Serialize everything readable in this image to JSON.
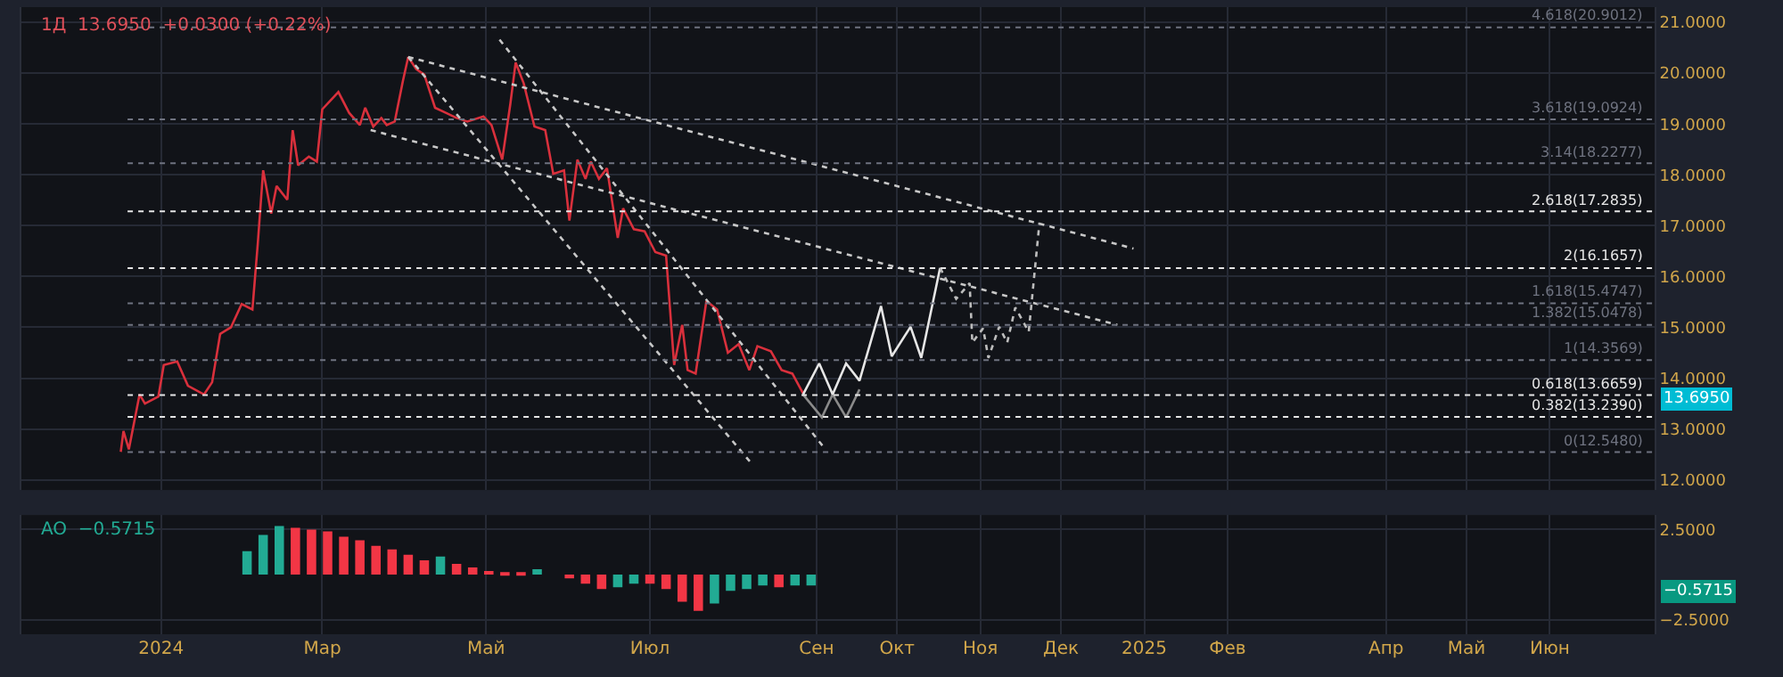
{
  "chart_data": [
    {
      "type": "line",
      "title": "1Д  13.6950  +0.0300 (+0.22%)",
      "xlim": [
        "2023-11-10",
        "2025-07-10"
      ],
      "ylim": [
        11.8,
        21.3
      ],
      "yticks": [
        {
          "value": 12,
          "label": "12.0000"
        },
        {
          "value": 13,
          "label": "13.0000"
        },
        {
          "value": 14,
          "label": "14.0000"
        },
        {
          "value": 15,
          "label": "15.0000"
        },
        {
          "value": 16,
          "label": "16.0000"
        },
        {
          "value": 17,
          "label": "17.0000"
        },
        {
          "value": 18,
          "label": "18.0000"
        },
        {
          "value": 19,
          "label": "19.0000"
        },
        {
          "value": 20,
          "label": "20.0000"
        },
        {
          "value": 21,
          "label": "21.0000"
        }
      ],
      "grid": true,
      "legend": false,
      "tick_labels": "y",
      "series": [
        {
          "color": "#d9303c",
          "line_style": "solid",
          "x": [
            "2023-12-17",
            "2023-12-18",
            "2023-12-20",
            "2023-12-24",
            "2023-12-26",
            "2023-12-31",
            "2024-01-02",
            "2024-01-07",
            "2024-01-11",
            "2024-01-17",
            "2024-01-20",
            "2024-01-23",
            "2024-01-27",
            "2024-01-31",
            "2024-02-04",
            "2024-02-06",
            "2024-02-08",
            "2024-02-11",
            "2024-02-13",
            "2024-02-17",
            "2024-02-19",
            "2024-02-21",
            "2024-02-25",
            "2024-02-28",
            "2024-03-01",
            "2024-03-07",
            "2024-03-11",
            "2024-03-15",
            "2024-03-17",
            "2024-03-20",
            "2024-03-23",
            "2024-03-25",
            "2024-03-28",
            "2024-03-31",
            "2024-04-02",
            "2024-04-05",
            "2024-04-08",
            "2024-04-12",
            "2024-04-16",
            "2024-04-20",
            "2024-04-24",
            "2024-04-30",
            "2024-05-03",
            "2024-05-07",
            "2024-05-10",
            "2024-05-12",
            "2024-05-15",
            "2024-05-19",
            "2024-05-23",
            "2024-05-26",
            "2024-05-30",
            "2024-06-01",
            "2024-06-04",
            "2024-06-07",
            "2024-06-09",
            "2024-06-12",
            "2024-06-15",
            "2024-06-19",
            "2024-06-21",
            "2024-06-25",
            "2024-06-29",
            "2024-07-03",
            "2024-07-07",
            "2024-07-10",
            "2024-07-13",
            "2024-07-15",
            "2024-07-18",
            "2024-07-22",
            "2024-07-26",
            "2024-07-30",
            "2024-08-03",
            "2024-08-07",
            "2024-08-10",
            "2024-08-15",
            "2024-08-19",
            "2024-08-23",
            "2024-08-27"
          ],
          "values": [
            12.55,
            12.96,
            12.6,
            13.68,
            13.5,
            13.64,
            14.26,
            14.33,
            13.85,
            13.68,
            13.92,
            14.87,
            15.0,
            15.46,
            15.35,
            16.65,
            18.09,
            17.24,
            17.78,
            17.51,
            18.88,
            18.19,
            18.36,
            18.26,
            19.29,
            19.63,
            19.22,
            18.98,
            19.32,
            18.95,
            19.12,
            18.98,
            19.05,
            19.84,
            20.32,
            20.08,
            19.97,
            19.32,
            19.22,
            19.12,
            19.05,
            19.15,
            18.98,
            18.3,
            19.39,
            20.21,
            19.8,
            18.95,
            18.88,
            18.02,
            18.09,
            17.1,
            18.3,
            17.92,
            18.26,
            17.92,
            18.13,
            16.76,
            17.34,
            16.93,
            16.89,
            16.48,
            16.41,
            14.26,
            15.05,
            14.16,
            14.09,
            15.52,
            15.35,
            14.5,
            14.67,
            14.16,
            14.63,
            14.53,
            14.16,
            14.09,
            13.7
          ]
        },
        {
          "color": "#c8c8c8",
          "line_style": "dotted",
          "x": [
            "2024-04-02",
            "2024-12-28"
          ],
          "values": [
            20.32,
            16.55
          ]
        },
        {
          "color": "#c8c8c8",
          "line_style": "dotted",
          "x": [
            "2024-03-19",
            "2024-12-22"
          ],
          "values": [
            18.88,
            15.05
          ]
        },
        {
          "color": "#c8c8c8",
          "line_style": "dotted",
          "x": [
            "2024-04-02",
            "2024-08-08"
          ],
          "values": [
            20.32,
            12.31
          ]
        },
        {
          "color": "#c8c8c8",
          "line_style": "dotted",
          "x": [
            "2024-05-06",
            "2024-09-04"
          ],
          "values": [
            20.66,
            12.62
          ]
        },
        {
          "color": "#8a8a8a",
          "line_style": "solid",
          "x": [
            "2024-08-27",
            "2024-09-03",
            "2024-09-07",
            "2024-09-12",
            "2024-09-17"
          ],
          "values": [
            13.68,
            13.23,
            13.68,
            13.23,
            13.78
          ]
        },
        {
          "color": "#e6e6e6",
          "line_style": "solid",
          "x": [
            "2024-08-27",
            "2024-09-02",
            "2024-09-07",
            "2024-09-12",
            "2024-09-17",
            "2024-09-25",
            "2024-09-29",
            "2024-10-06",
            "2024-10-10",
            "2024-10-17"
          ],
          "values": [
            13.68,
            14.29,
            13.68,
            14.29,
            13.95,
            15.42,
            14.43,
            15.01,
            14.4,
            16.17
          ]
        },
        {
          "color": "#bdbdbd",
          "line_style": "dotted",
          "x": [
            "2024-10-17",
            "2024-10-23",
            "2024-10-28",
            "2024-10-29",
            "2024-11-02",
            "2024-11-04",
            "2024-11-08",
            "2024-11-11",
            "2024-11-14",
            "2024-11-19",
            "2024-11-23"
          ],
          "values": [
            16.17,
            15.56,
            15.87,
            14.7,
            14.98,
            14.4,
            15.01,
            14.7,
            15.39,
            14.91,
            17.06
          ]
        }
      ],
      "ref_lines": [
        {
          "axis": "y",
          "value": 12.548,
          "label": "0(12.5480)",
          "color": "#6f7380",
          "line_style": "dotted"
        },
        {
          "axis": "y",
          "value": 13.239,
          "label": "0.382(13.2390)",
          "color": "#e6e6e6",
          "line_style": "dotted"
        },
        {
          "axis": "y",
          "value": 13.6659,
          "label": "0.618(13.6659)",
          "color": "#e6e6e6",
          "line_style": "dotted"
        },
        {
          "axis": "y",
          "value": 14.3569,
          "label": "1(14.3569)",
          "color": "#6f7380",
          "line_style": "dotted"
        },
        {
          "axis": "y",
          "value": 15.0478,
          "label": "1.382(15.0478)",
          "color": "#6f7380",
          "line_style": "dotted"
        },
        {
          "axis": "y",
          "value": 15.4747,
          "label": "1.618(15.4747)",
          "color": "#6f7380",
          "line_style": "dotted"
        },
        {
          "axis": "y",
          "value": 16.1657,
          "label": "2(16.1657)",
          "color": "#e6e6e6",
          "line_style": "dotted"
        },
        {
          "axis": "y",
          "value": 17.2835,
          "label": "2.618(17.2835)",
          "color": "#e6e6e6",
          "line_style": "dotted"
        },
        {
          "axis": "y",
          "value": 18.2277,
          "label": "3.14(18.2277)",
          "color": "#6f7380",
          "line_style": "dotted"
        },
        {
          "axis": "y",
          "value": 19.0924,
          "label": "3.618(19.0924)",
          "color": "#6f7380",
          "line_style": "dotted"
        },
        {
          "axis": "y",
          "value": 20.9012,
          "label": "4.618(20.9012)",
          "color": "#6f7380",
          "line_style": "dotted"
        }
      ],
      "annotations": [
        "13.6950"
      ]
    },
    {
      "type": "bar",
      "title": "AO  −0.5715",
      "xlim": [
        "2023-11-10",
        "2025-07-10"
      ],
      "xticks": [
        {
          "value": "2024-01-01",
          "label": "2024"
        },
        {
          "value": "2024-03-01",
          "label": "Мар"
        },
        {
          "value": "2024-05-01",
          "label": "Май"
        },
        {
          "value": "2024-07-01",
          "label": "Июл"
        },
        {
          "value": "2024-09-01",
          "label": "Сен"
        },
        {
          "value": "2024-10-01",
          "label": "Окт"
        },
        {
          "value": "2024-11-01",
          "label": "Ноя"
        },
        {
          "value": "2024-12-01",
          "label": "Дек"
        },
        {
          "value": "2025-01-01",
          "label": "2025"
        },
        {
          "value": "2025-02-01",
          "label": "Фев"
        },
        {
          "value": "2025-04-01",
          "label": "Апр"
        },
        {
          "value": "2025-05-01",
          "label": "Май"
        },
        {
          "value": "2025-06-01",
          "label": "Июн"
        }
      ],
      "ylim": [
        -3.3,
        3.3
      ],
      "yticks": [
        {
          "value": 2.5,
          "label": "2.5000"
        },
        {
          "value": -2.5,
          "label": "−2.5000"
        }
      ],
      "grid": true,
      "legend": false,
      "x": [
        "2024-02-02",
        "2024-02-08",
        "2024-02-14",
        "2024-02-20",
        "2024-02-26",
        "2024-03-03",
        "2024-03-09",
        "2024-03-15",
        "2024-03-21",
        "2024-03-27",
        "2024-04-02",
        "2024-04-08",
        "2024-04-14",
        "2024-04-20",
        "2024-04-26",
        "2024-05-02",
        "2024-05-08",
        "2024-05-14",
        "2024-05-20",
        "2024-05-26",
        "2024-06-01",
        "2024-06-07",
        "2024-06-13",
        "2024-06-19",
        "2024-06-25",
        "2024-07-01",
        "2024-07-07",
        "2024-07-13",
        "2024-07-19",
        "2024-07-25",
        "2024-07-31",
        "2024-08-06",
        "2024-08-12",
        "2024-08-18",
        "2024-08-24",
        "2024-08-30"
      ],
      "values": [
        1.3,
        2.2,
        2.7,
        2.6,
        2.5,
        2.4,
        2.1,
        1.9,
        1.6,
        1.4,
        1.1,
        0.8,
        1.0,
        0.6,
        0.4,
        0.2,
        0.1,
        0.1,
        0.3,
        0.0,
        -0.2,
        -0.5,
        -0.8,
        -0.7,
        -0.5,
        -0.5,
        -0.8,
        -1.5,
        -2.0,
        -1.6,
        -0.9,
        -0.8,
        -0.6,
        -0.7,
        -0.6,
        -0.6
      ],
      "colors": [
        "#22ab94",
        "#22ab94",
        "#22ab94",
        "#f23645",
        "#f23645",
        "#f23645",
        "#f23645",
        "#f23645",
        "#f23645",
        "#f23645",
        "#f23645",
        "#f23645",
        "#22ab94",
        "#f23645",
        "#f23645",
        "#f23645",
        "#f23645",
        "#f23645",
        "#22ab94",
        "#f23645",
        "#f23645",
        "#f23645",
        "#f23645",
        "#22ab94",
        "#22ab94",
        "#f23645",
        "#f23645",
        "#f23645",
        "#f23645",
        "#22ab94",
        "#22ab94",
        "#22ab94",
        "#22ab94",
        "#f23645",
        "#22ab94",
        "#22ab94"
      ],
      "annotations": [
        "−0.5715"
      ]
    }
  ]
}
